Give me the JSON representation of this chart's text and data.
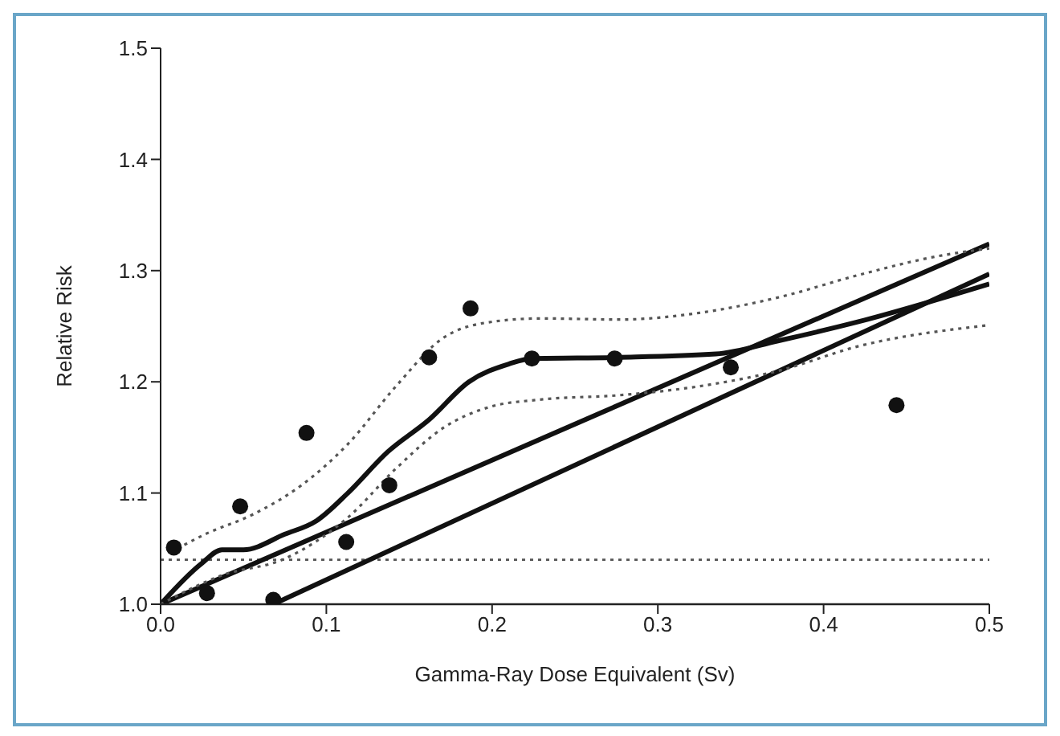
{
  "chart_data": {
    "type": "line",
    "xlabel": "Gamma-Ray Dose Equivalent (Sv)",
    "ylabel": "Relative Risk",
    "xlim": [
      0,
      0.5
    ],
    "xticks": [
      {
        "value": 0,
        "label": "0.0"
      },
      {
        "value": 0.1,
        "label": "0.1"
      },
      {
        "value": 0.2,
        "label": "0.2"
      },
      {
        "value": 0.3,
        "label": "0.3"
      },
      {
        "value": 0.4,
        "label": "0.4"
      },
      {
        "value": 0.5,
        "label": "0.5"
      }
    ],
    "ylim": [
      1.0,
      1.5
    ],
    "yticks": [
      {
        "value": 1,
        "label": "1.0"
      },
      {
        "value": 1.1,
        "label": "1.1"
      },
      {
        "value": 1.2,
        "label": "1.2"
      },
      {
        "value": 1.3,
        "label": "1.3"
      },
      {
        "value": 1.4,
        "label": "1.4"
      },
      {
        "value": 1.5,
        "label": "1.5"
      }
    ],
    "grid": false,
    "legend": false,
    "series": [
      {
        "type": "scatter",
        "color": "#111111",
        "marker": "circle",
        "x": [
          0.008,
          0.028,
          0.048,
          0.068,
          0.088,
          0.112,
          0.138,
          0.162,
          0.187,
          0.224,
          0.274,
          0.344,
          0.444
        ],
        "values": [
          1.051,
          1.01,
          1.088,
          1.004,
          1.154,
          1.056,
          1.107,
          1.222,
          1.266,
          1.221,
          1.221,
          1.213,
          1.179
        ]
      },
      {
        "color": "#111111",
        "line_style": "solid",
        "x": [
          0,
          0.5
        ],
        "values": [
          1.0,
          1.324
        ]
      },
      {
        "color": "#111111",
        "line_style": "solid",
        "x": [
          0.068,
          0.5
        ],
        "values": [
          1.0,
          1.297
        ]
      },
      {
        "color": "#111111",
        "line_style": "solid",
        "x": [
          0,
          0.025,
          0.037,
          0.05,
          0.075,
          0.094,
          0.113,
          0.137,
          0.162,
          0.186,
          0.21,
          0.224,
          0.277,
          0.335,
          0.373,
          0.421,
          0.5
        ],
        "values": [
          1.0,
          1.037,
          1.049,
          1.049,
          1.063,
          1.075,
          1.1,
          1.137,
          1.166,
          1.2,
          1.216,
          1.221,
          1.222,
          1.225,
          1.237,
          1.254,
          1.288
        ]
      },
      {
        "color": "#555555",
        "line_style": "dotted",
        "x": [
          0.01,
          0.027,
          0.056,
          0.085,
          0.113,
          0.142,
          0.171,
          0.2,
          0.229,
          0.277,
          0.325,
          0.373,
          0.421,
          0.469,
          0.5
        ],
        "values": [
          1.05,
          1.063,
          1.081,
          1.107,
          1.144,
          1.196,
          1.24,
          1.254,
          1.257,
          1.256,
          1.262,
          1.276,
          1.296,
          1.313,
          1.32
        ]
      },
      {
        "color": "#555555",
        "line_style": "dotted",
        "x": [
          0,
          0.037,
          0.075,
          0.113,
          0.142,
          0.171,
          0.2,
          0.229,
          0.277,
          0.325,
          0.373,
          0.421,
          0.5
        ],
        "values": [
          1.0,
          1.026,
          1.041,
          1.078,
          1.122,
          1.159,
          1.178,
          1.184,
          1.188,
          1.196,
          1.21,
          1.232,
          1.251
        ]
      }
    ],
    "ref_lines": [
      {
        "axis": "y",
        "value": 1.0,
        "line_style": "solid",
        "color": "#222222"
      },
      {
        "axis": "y",
        "value": 1.04,
        "line_style": "dotted",
        "color": "#555555"
      }
    ]
  }
}
